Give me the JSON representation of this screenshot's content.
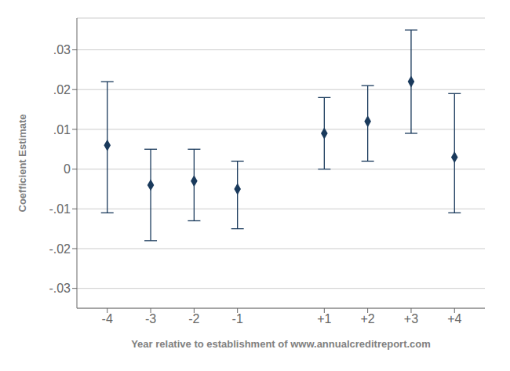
{
  "chart_data": {
    "type": "scatter",
    "x": [
      -4,
      -3,
      -2,
      -1,
      1,
      2,
      3,
      4
    ],
    "values": [
      0.006,
      -0.004,
      -0.003,
      -0.005,
      0.009,
      0.012,
      0.022,
      0.003
    ],
    "error_lower": [
      0.017,
      0.014,
      0.01,
      0.01,
      0.009,
      0.01,
      0.013,
      0.014
    ],
    "error_upper": [
      0.016,
      0.009,
      0.008,
      0.007,
      0.009,
      0.009,
      0.013,
      0.016
    ],
    "color": "#1a3a5c",
    "marker": "diamond",
    "xlabel": "Year relative to establishment of www.annualcreditreport.com",
    "ylabel": "Coefficient Estimate",
    "xlim": [
      -4.7,
      4.7
    ],
    "xticks": [
      -4,
      -3,
      -2,
      -1,
      {
        "value": 1,
        "label": "+1"
      },
      {
        "value": 2,
        "label": "+2"
      },
      {
        "value": 3,
        "label": "+3"
      },
      {
        "value": 4,
        "label": "+4"
      }
    ],
    "ylim": [
      -0.035,
      0.038
    ],
    "yticks": [
      {
        "value": -0.03,
        "label": "-.03"
      },
      {
        "value": -0.02,
        "label": "-.02"
      },
      {
        "value": -0.01,
        "label": "-.01"
      },
      0,
      {
        "value": 0.01,
        "label": ".01"
      },
      {
        "value": 0.02,
        "label": ".02"
      },
      {
        "value": 0.03,
        "label": ".03"
      }
    ],
    "grid": true
  }
}
